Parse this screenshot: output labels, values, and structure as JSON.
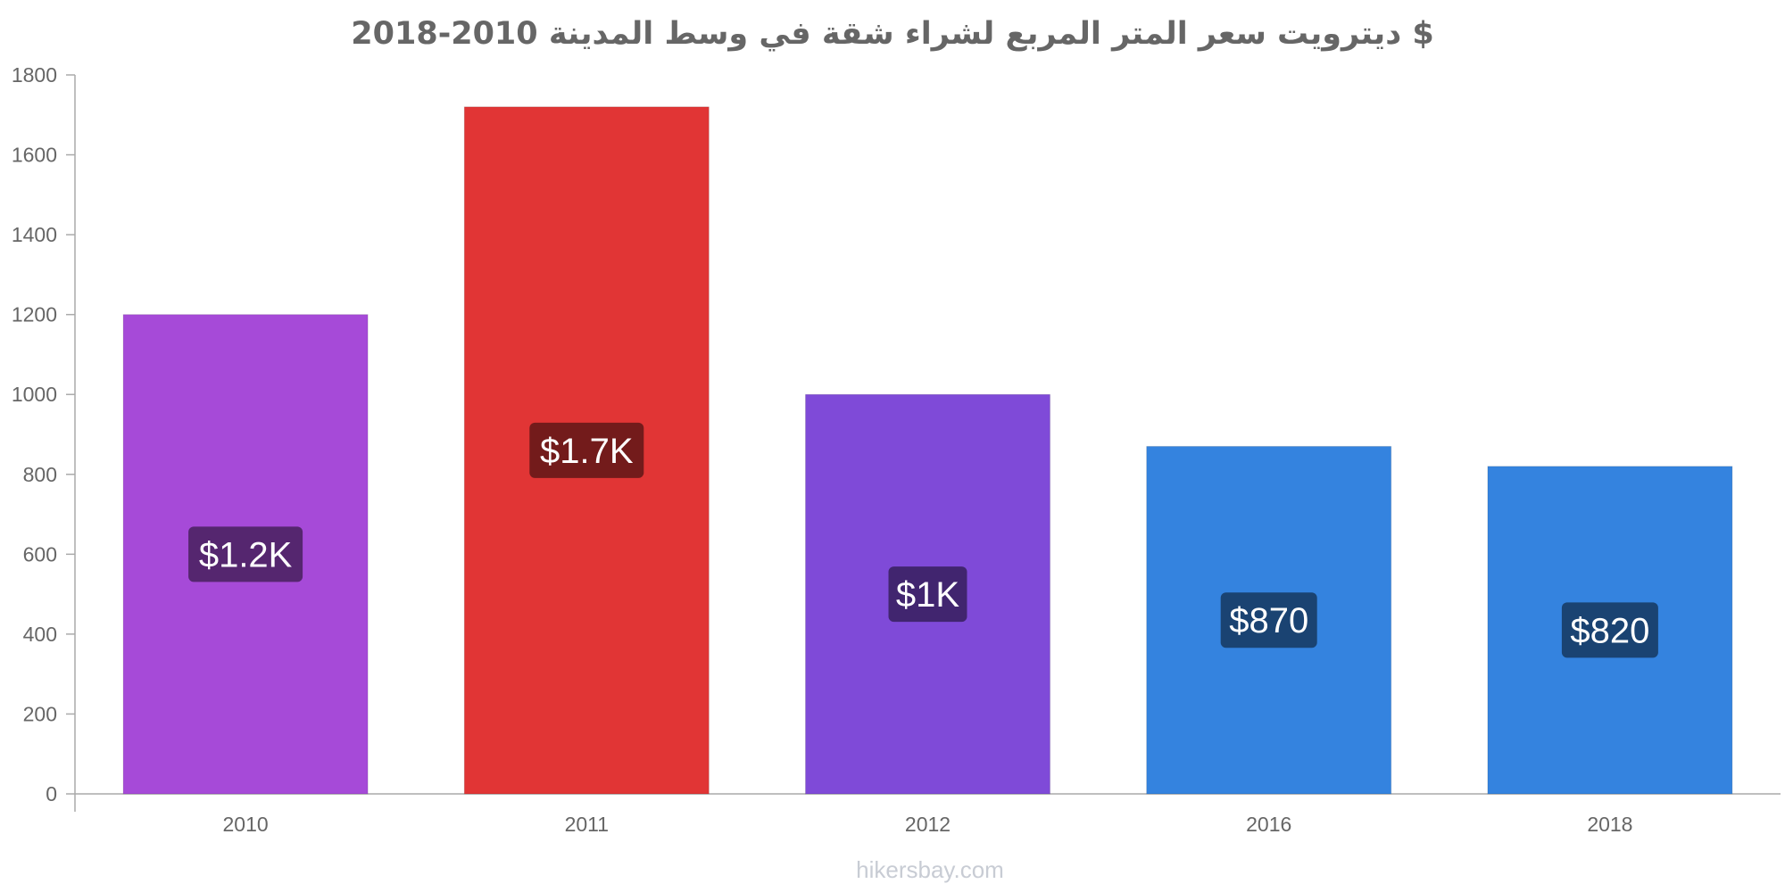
{
  "title": "ديترويت سعر المتر المربع لشراء شقة في وسط المدينة 2010-2018 $",
  "watermark": "hikersbay.com",
  "chart_data": {
    "type": "bar",
    "title": "ديترويت سعر المتر المربع لشراء شقة في وسط المدينة 2010-2018 $",
    "categories": [
      "2010",
      "2011",
      "2012",
      "2016",
      "2018"
    ],
    "values": [
      1200,
      1720,
      1000,
      870,
      820
    ],
    "value_labels": [
      "$1.2K",
      "$1.7K",
      "$1K",
      "$870",
      "$820"
    ],
    "colors": [
      "#a64ad8",
      "#e13535",
      "#7f4ad8",
      "#3483df",
      "#3483df"
    ],
    "label_bg_colors": [
      "#55266f",
      "#731b1b",
      "#41256f",
      "#1a4372",
      "#1a4372"
    ],
    "y_ticks": [
      "0",
      "200",
      "400",
      "600",
      "800",
      "1000",
      "1200",
      "1400",
      "1600",
      "1800"
    ],
    "ylim": [
      0,
      1800
    ],
    "xlabel": "",
    "ylabel": "",
    "grid": false,
    "legend": "none"
  }
}
